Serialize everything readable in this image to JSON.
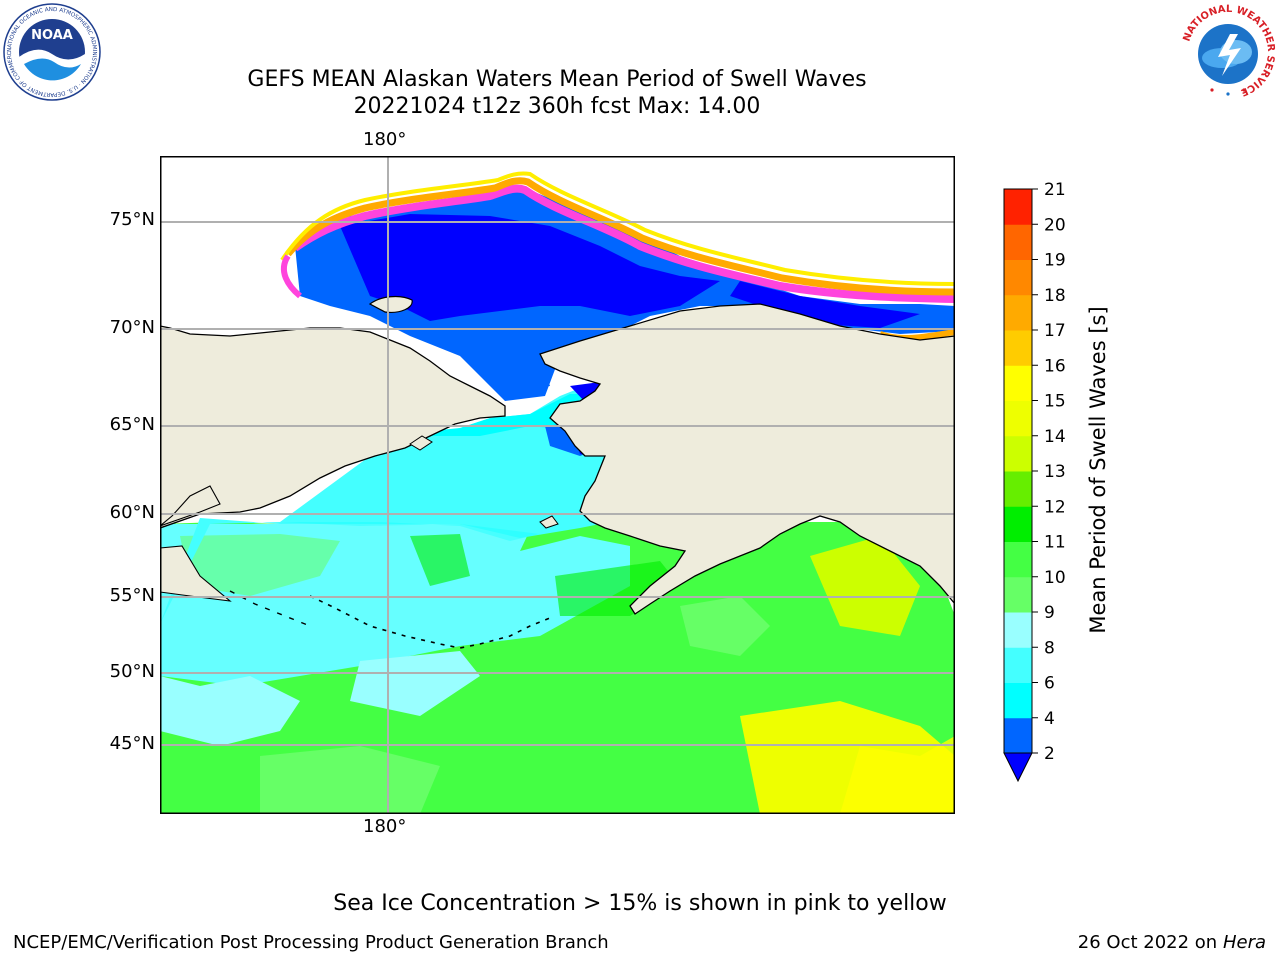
{
  "logos": {
    "left": {
      "name": "NOAA",
      "ring_text": "NATIONAL OCEANIC AND ATMOSPHERIC ADMINISTRATION · U.S. DEPARTMENT OF COMMERCE"
    },
    "right": {
      "ring_text": "NATIONAL WEATHER SERVICE"
    }
  },
  "title": {
    "line1": "GEFS MEAN Alaskan Waters Mean Period of Swell Waves",
    "line2": "20221024 t12z 360h fcst   Max: 14.00"
  },
  "map": {
    "projection": "polar stereographic (Alaska)",
    "land_color": "#eeecdc",
    "graticule_color": "#b0b0b0",
    "lon_labels": {
      "top": "180°",
      "bottom": "180°"
    },
    "lat_labels": [
      "75°N",
      "70°N",
      "65°N",
      "60°N",
      "55°N",
      "50°N",
      "45°N"
    ]
  },
  "colorbar": {
    "label": "Mean Period of Swell Waves [s]",
    "extend": "min",
    "ticks": [
      "2",
      "4",
      "6",
      "8",
      "9",
      "10",
      "11",
      "12",
      "13",
      "14",
      "15",
      "16",
      "17",
      "18",
      "19",
      "20",
      "21"
    ],
    "colors": [
      "#0066ff",
      "#00ffff",
      "#44ffff",
      "#99ffff",
      "#66ff66",
      "#44ff44",
      "#00ee00",
      "#66ee00",
      "#ccff00",
      "#eeff00",
      "#ffff00",
      "#ffcc00",
      "#ffaa00",
      "#ff8800",
      "#ff6600",
      "#ff2200"
    ],
    "under_color": "#0000ff"
  },
  "ice_note": "Sea Ice Concentration > 15% is shown in pink to yellow",
  "footer": {
    "left": "NCEP/EMC/Verification Post Processing Product Generation Branch",
    "date": "26 Oct 2022 on ",
    "host": "Hera"
  }
}
